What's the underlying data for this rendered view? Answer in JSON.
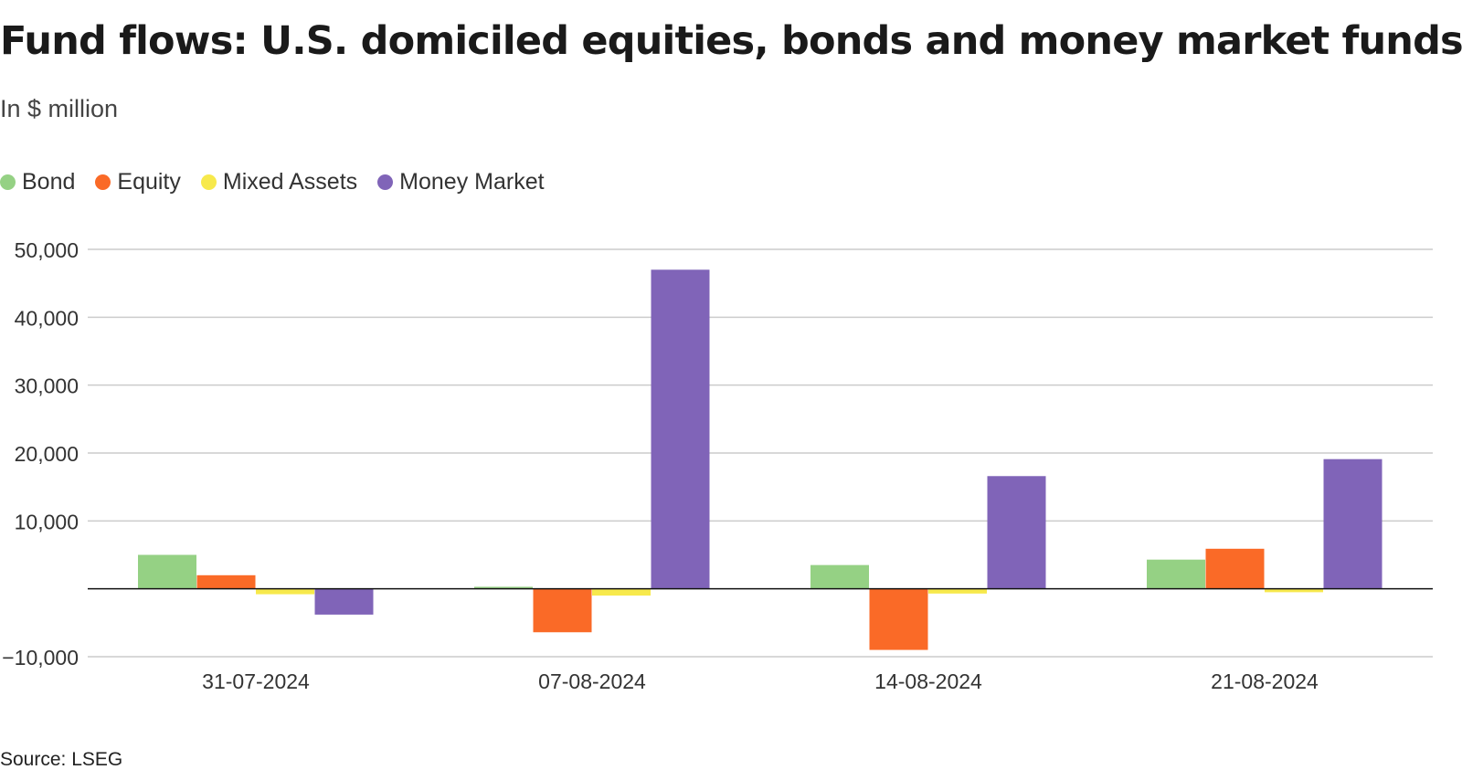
{
  "title": "Fund flows: U.S. domiciled equities, bonds and money market funds",
  "subtitle": "In $ million",
  "source": "Source: LSEG",
  "legend": [
    {
      "label": "Bond",
      "color": "#95d184"
    },
    {
      "label": "Equity",
      "color": "#fa6a27"
    },
    {
      "label": "Mixed Assets",
      "color": "#f7e94c"
    },
    {
      "label": "Money Market",
      "color": "#8064b8"
    }
  ],
  "chart_data": {
    "type": "bar",
    "categories": [
      "31-07-2024",
      "07-08-2024",
      "14-08-2024",
      "21-08-2024"
    ],
    "series": [
      {
        "name": "Bond",
        "color": "#95d184",
        "values": [
          5000,
          300,
          3500,
          4300
        ]
      },
      {
        "name": "Equity",
        "color": "#fa6a27",
        "values": [
          2000,
          -6400,
          -9000,
          5900
        ]
      },
      {
        "name": "Mixed Assets",
        "color": "#f7e94c",
        "values": [
          -800,
          -1000,
          -700,
          -500
        ]
      },
      {
        "name": "Money Market",
        "color": "#8064b8",
        "values": [
          -3800,
          47000,
          16600,
          19100
        ]
      }
    ],
    "ylim": [
      -10000,
      50000
    ],
    "yticks": [
      -10000,
      0,
      10000,
      20000,
      30000,
      40000,
      50000
    ],
    "ytick_labels": [
      "−10,000",
      "",
      "10,000",
      "20,000",
      "30,000",
      "40,000",
      "50,000"
    ],
    "grid": true,
    "legend_position": "top-left"
  }
}
